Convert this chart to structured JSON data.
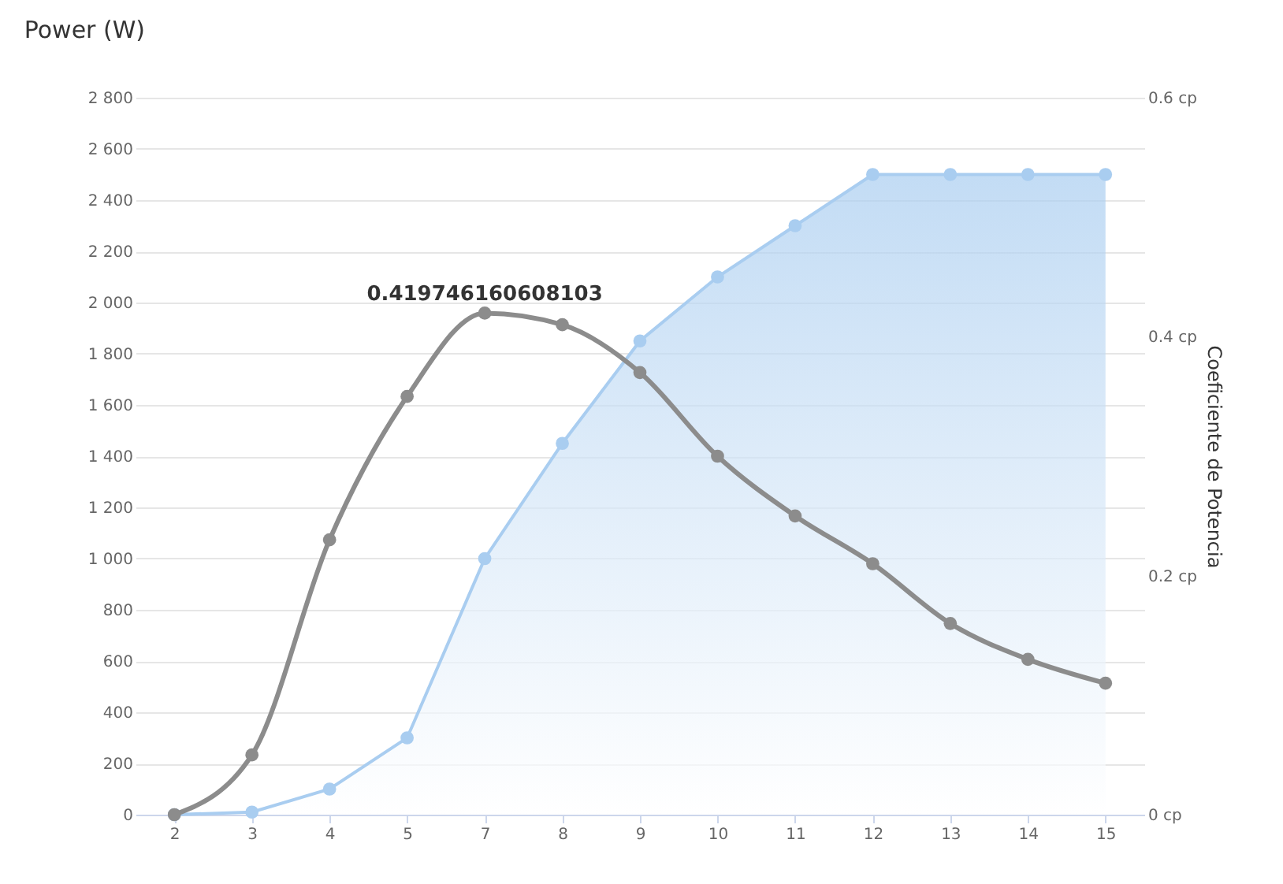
{
  "chart_data": {
    "type": "line",
    "title": "Power (W)",
    "y2label": "Coeficiente de Potencia",
    "categories": [
      "2",
      "3",
      "4",
      "5",
      "7",
      "8",
      "9",
      "10",
      "11",
      "12",
      "13",
      "14",
      "15"
    ],
    "series": [
      {
        "type": "area",
        "color": "#a9cdf0",
        "values": [
          0,
          10,
          100,
          300,
          1000,
          1450,
          1850,
          2100,
          2300,
          2500,
          2500,
          2500,
          2500
        ]
      },
      {
        "axis": "y2",
        "color": "#8c8c8c",
        "values": [
          0,
          0.05,
          0.23,
          0.35,
          0.419746160608103,
          0.41,
          0.37,
          0.3,
          0.25,
          0.21,
          0.16,
          0.13,
          0.11
        ]
      }
    ],
    "ylim": [
      0,
      2800
    ],
    "yticks": [
      0,
      200,
      400,
      600,
      800,
      {
        "value": 1000,
        "label": "1 000"
      },
      {
        "value": 1200,
        "label": "1 200"
      },
      {
        "value": 1400,
        "label": "1 400"
      },
      {
        "value": 1600,
        "label": "1 600"
      },
      {
        "value": 1800,
        "label": "1 800"
      },
      {
        "value": 2000,
        "label": "2 000"
      },
      {
        "value": 2200,
        "label": "2 200"
      },
      {
        "value": 2400,
        "label": "2 400"
      },
      {
        "value": 2600,
        "label": "2 600"
      },
      {
        "value": 2800,
        "label": "2 800"
      }
    ],
    "y2lim": [
      0,
      0.6
    ],
    "y2ticks": [
      {
        "value": 0,
        "label": "0 cp"
      },
      {
        "value": 0.2,
        "label": "0.2 cp"
      },
      {
        "value": 0.4,
        "label": "0.4 cp"
      },
      {
        "value": 0.6,
        "label": "0.6 cp"
      }
    ],
    "annotations": [
      "0.419746160608103"
    ],
    "grid": "y",
    "marker": "circle",
    "line_style": "solid"
  }
}
